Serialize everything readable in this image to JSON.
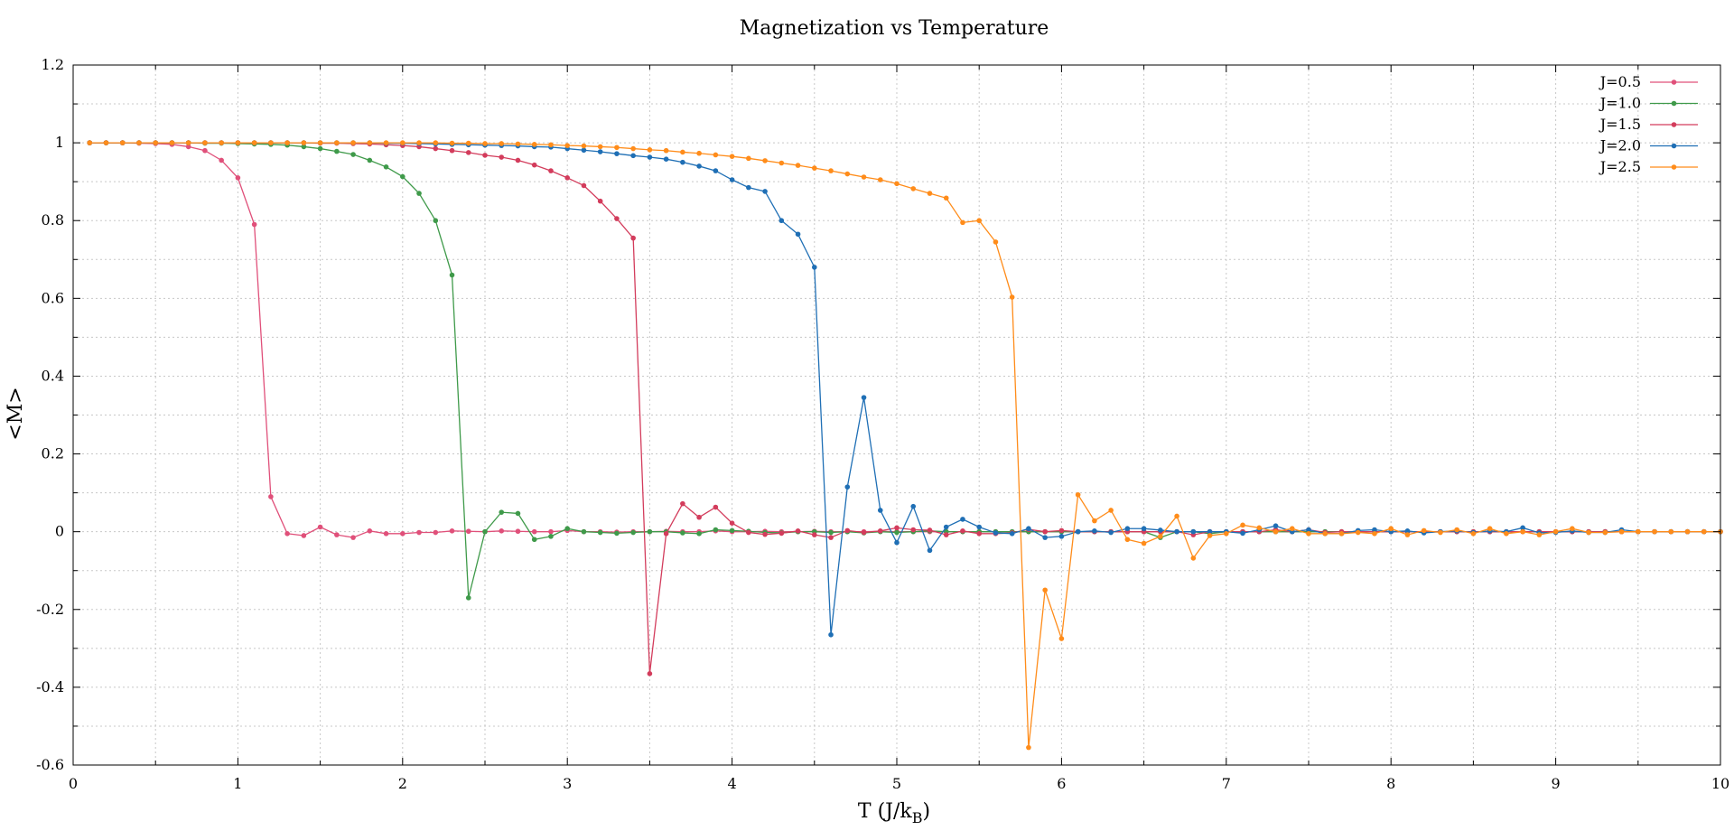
{
  "chart_data": {
    "type": "line",
    "title": "Magnetization vs Temperature",
    "xlabel": "T (J/k",
    "xlabel_sub": "B",
    "xlabel_end": ")",
    "ylabel": "<M>",
    "xlim": [
      0,
      10
    ],
    "ylim": [
      -0.6,
      1.2
    ],
    "xticks": [
      0,
      1,
      2,
      3,
      4,
      5,
      6,
      7,
      8,
      9,
      10
    ],
    "xtick_labels": [
      "0",
      "1",
      "2",
      "3",
      "4",
      "5",
      "6",
      "7",
      "8",
      "9",
      "10"
    ],
    "yticks": [
      -0.6,
      -0.4,
      -0.2,
      0,
      0.2,
      0.4,
      0.6,
      0.8,
      1,
      1.2
    ],
    "ytick_labels": [
      "-0.6",
      "-0.4",
      "-0.2",
      "0",
      "0.2",
      "0.4",
      "0.6",
      "0.8",
      "1",
      "1.2"
    ],
    "grid": true,
    "legend_position": "top-right",
    "x": [
      0.1,
      0.2,
      0.3,
      0.4,
      0.5,
      0.6,
      0.7,
      0.8,
      0.9,
      1.0,
      1.1,
      1.2,
      1.3,
      1.4,
      1.5,
      1.6,
      1.7,
      1.8,
      1.9,
      2.0,
      2.1,
      2.2,
      2.3,
      2.4,
      2.5,
      2.6,
      2.7,
      2.8,
      2.9,
      3.0,
      3.1,
      3.2,
      3.3,
      3.4,
      3.5,
      3.6,
      3.7,
      3.8,
      3.9,
      4.0,
      4.1,
      4.2,
      4.3,
      4.4,
      4.5,
      4.6,
      4.7,
      4.8,
      4.9,
      5.0,
      5.1,
      5.2,
      5.3,
      5.4,
      5.5,
      5.6,
      5.7,
      5.8,
      5.9,
      6.0,
      6.1,
      6.2,
      6.3,
      6.4,
      6.5,
      6.6,
      6.7,
      6.8,
      6.9,
      7.0,
      7.1,
      7.2,
      7.3,
      7.4,
      7.5,
      7.6,
      7.7,
      7.8,
      7.9,
      8.0,
      8.1,
      8.2,
      8.3,
      8.4,
      8.5,
      8.6,
      8.7,
      8.8,
      8.9,
      9.0,
      9.1,
      9.2,
      9.3,
      9.4,
      9.5,
      9.6,
      9.7,
      9.8,
      9.9,
      10.0
    ],
    "series": [
      {
        "name": "J=0.5",
        "color": "#e0507a",
        "values": [
          1.0,
          1.0,
          1.0,
          0.999,
          0.998,
          0.996,
          0.99,
          0.98,
          0.955,
          0.91,
          0.79,
          0.09,
          -0.005,
          -0.01,
          0.012,
          -0.008,
          -0.015,
          0.002,
          -0.005,
          -0.005,
          -0.002,
          -0.002,
          0.002,
          0.001,
          0.0,
          0.002,
          0.001,
          0.0,
          0.0,
          0.003,
          0.0,
          0.0,
          -0.001,
          0.0,
          0.0,
          0.001,
          0.0,
          0.0,
          0.002,
          0.0,
          0.0,
          0.001,
          0.0,
          0.0,
          0.001,
          0.0,
          0.0,
          0.0,
          0.001,
          0.0,
          0.0,
          0.0,
          0.0,
          0.0,
          0.0,
          0.0,
          0.0,
          0.0,
          0.0,
          0.0,
          0.0,
          0.0,
          0.0,
          0.0,
          0.0,
          0.0,
          0.0,
          0.0,
          0.0,
          0.0,
          0.0,
          0.0,
          0.0,
          0.0,
          0.0,
          0.0,
          0.0,
          0.0,
          0.0,
          0.0,
          0.0,
          0.0,
          0.0,
          0.0,
          0.0,
          0.0,
          0.0,
          0.0,
          0.0,
          0.0,
          0.0,
          0.0,
          0.0,
          0.0,
          0.0,
          0.0,
          0.0,
          0.0,
          0.0,
          0.0
        ]
      },
      {
        "name": "J=1.0",
        "color": "#3f9a4a",
        "values": [
          1.0,
          1.0,
          1.0,
          1.0,
          1.0,
          1.0,
          1.0,
          0.999,
          0.999,
          0.998,
          0.997,
          0.996,
          0.994,
          0.99,
          0.985,
          0.978,
          0.97,
          0.955,
          0.938,
          0.913,
          0.87,
          0.8,
          0.66,
          -0.17,
          0.0,
          0.05,
          0.047,
          -0.02,
          -0.012,
          0.008,
          0.0,
          -0.002,
          -0.004,
          -0.002,
          0.0,
          0.0,
          -0.003,
          -0.005,
          0.005,
          0.003,
          0.001,
          -0.002,
          -0.003,
          0.0,
          0.0,
          -0.002,
          0.0,
          -0.003,
          0.0,
          -0.002,
          0.0,
          0.002,
          0.0,
          0.0,
          0.0,
          0.0,
          0.0,
          0.0,
          0.0,
          0.0,
          0.0,
          0.0,
          0.0,
          0.0,
          0.0,
          -0.015,
          0.0,
          0.0,
          -0.005,
          0.0,
          0.0,
          0.0,
          0.0,
          0.0,
          0.0,
          0.0,
          0.0,
          0.0,
          0.0,
          0.0,
          0.0,
          0.0,
          0.0,
          0.0,
          0.0,
          0.0,
          0.0,
          0.0,
          0.0,
          0.0,
          0.0,
          0.0,
          0.0,
          0.0,
          0.0,
          0.0,
          0.0,
          0.0,
          0.0,
          0.0
        ]
      },
      {
        "name": "J=1.5",
        "color": "#d33c5c",
        "values": [
          1.0,
          1.0,
          1.0,
          1.0,
          1.0,
          1.0,
          1.0,
          1.0,
          1.0,
          1.0,
          1.0,
          1.0,
          1.0,
          1.0,
          0.999,
          0.999,
          0.998,
          0.997,
          0.995,
          0.993,
          0.99,
          0.985,
          0.98,
          0.975,
          0.968,
          0.963,
          0.955,
          0.943,
          0.928,
          0.91,
          0.89,
          0.85,
          0.805,
          0.755,
          -0.365,
          -0.005,
          0.072,
          0.037,
          0.063,
          0.022,
          -0.002,
          -0.007,
          -0.004,
          0.002,
          -0.008,
          -0.015,
          0.003,
          -0.002,
          0.002,
          0.01,
          0.005,
          0.004,
          -0.008,
          0.002,
          -0.005,
          -0.005,
          -0.003,
          0.006,
          0.0,
          0.003,
          0.0,
          0.0,
          0.0,
          0.0,
          0.0,
          0.0,
          0.0,
          -0.008,
          0.0,
          0.0,
          0.0,
          0.0,
          0.005,
          0.0,
          0.005,
          -0.002,
          0.0,
          0.0,
          0.0,
          0.0,
          0.0,
          0.0,
          0.0,
          0.0,
          0.0,
          0.0,
          0.0,
          0.0,
          0.0,
          0.0,
          0.0,
          0.0,
          0.0,
          0.0,
          0.0,
          0.0,
          0.0,
          0.0,
          0.0,
          0.0
        ]
      },
      {
        "name": "J=2.0",
        "color": "#1f6fb5",
        "values": [
          1.0,
          1.0,
          1.0,
          1.0,
          1.0,
          1.0,
          1.0,
          1.0,
          1.0,
          1.0,
          1.0,
          1.0,
          1.0,
          1.0,
          1.0,
          1.0,
          1.0,
          1.0,
          0.999,
          0.999,
          0.998,
          0.997,
          0.996,
          0.995,
          0.994,
          0.993,
          0.992,
          0.99,
          0.989,
          0.985,
          0.981,
          0.977,
          0.972,
          0.967,
          0.963,
          0.958,
          0.95,
          0.94,
          0.928,
          0.905,
          0.885,
          0.875,
          0.8,
          0.765,
          0.68,
          -0.265,
          0.115,
          0.345,
          0.055,
          -0.028,
          0.065,
          -0.048,
          0.012,
          0.032,
          0.012,
          -0.003,
          -0.005,
          0.008,
          -0.015,
          -0.012,
          0.0,
          0.002,
          -0.002,
          0.008,
          0.008,
          0.004,
          0.0,
          0.0,
          0.0,
          0.0,
          -0.004,
          0.005,
          0.015,
          0.0,
          0.005,
          -0.005,
          -0.005,
          0.003,
          0.005,
          0.0,
          0.002,
          -0.003,
          0.0,
          0.002,
          -0.002,
          0.002,
          0.0,
          0.01,
          -0.003,
          -0.002,
          0.002,
          -0.002,
          -0.002,
          0.005,
          0.0,
          0.0,
          0.0,
          0.0,
          0.0,
          0.0
        ]
      },
      {
        "name": "J=2.5",
        "color": "#ff8c1a",
        "values": [
          1.0,
          1.0,
          1.0,
          1.0,
          1.0,
          1.0,
          1.0,
          1.0,
          1.0,
          1.0,
          1.0,
          1.0,
          1.0,
          1.0,
          1.0,
          1.0,
          1.0,
          1.0,
          1.0,
          1.0,
          1.0,
          1.0,
          0.999,
          0.999,
          0.998,
          0.998,
          0.997,
          0.996,
          0.995,
          0.993,
          0.992,
          0.99,
          0.988,
          0.985,
          0.982,
          0.98,
          0.976,
          0.973,
          0.969,
          0.965,
          0.96,
          0.954,
          0.948,
          0.942,
          0.935,
          0.928,
          0.92,
          0.912,
          0.905,
          0.895,
          0.882,
          0.87,
          0.858,
          0.795,
          0.8,
          0.745,
          0.603,
          -0.555,
          -0.15,
          -0.275,
          0.095,
          0.028,
          0.055,
          -0.02,
          -0.03,
          -0.012,
          0.04,
          -0.068,
          -0.01,
          -0.005,
          0.017,
          0.01,
          0.0,
          0.008,
          -0.005,
          -0.005,
          -0.005,
          -0.002,
          -0.005,
          0.008,
          -0.008,
          0.003,
          -0.002,
          0.005,
          -0.005,
          0.008,
          -0.005,
          0.0,
          -0.008,
          0.0,
          0.008,
          -0.002,
          -0.002,
          0.0,
          0.0,
          0.0,
          0.0,
          0.0,
          0.0,
          0.0
        ]
      }
    ]
  }
}
